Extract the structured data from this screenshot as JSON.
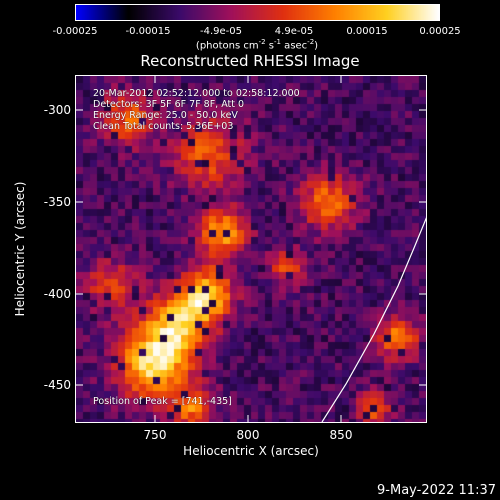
{
  "colorbar": {
    "tick_labels": [
      "-0.00025",
      "-0.00015",
      "-4.9e-05",
      "4.9e-05",
      "0.00015",
      "0.00025"
    ],
    "unit_text": "(photons cm",
    "unit_exp1": "-2",
    "unit_mid": " s",
    "unit_exp2": "-1",
    "unit_tail": " asec",
    "unit_exp3": "-2",
    "unit_close": ")",
    "colors": [
      "#0000ff",
      "#000000",
      "#3b0a6a",
      "#a0105a",
      "#e03010",
      "#ff8000",
      "#ffd020",
      "#ffffff"
    ]
  },
  "title": "Reconstructed RHESSI Image",
  "overlay": {
    "time_range": "20-Mar-2012 02:52:12.000 to 02:58:12.000",
    "detectors": "Detectors: 3F 5F 6F 7F 8F, Att 0",
    "energy": "Energy Range: 25.0 - 50.0 keV",
    "clean": "Clean     Total counts: 5.36E+03",
    "peak": "Position of Peak = [741,-435]"
  },
  "axes": {
    "xlabel": "Heliocentric X (arcsec)",
    "ylabel": "Heliocentric Y (arcsec)",
    "xticks": [
      "750",
      "800",
      "850"
    ],
    "yticks": [
      "-300",
      "-350",
      "-400",
      "-450"
    ],
    "xlim": [
      705,
      893
    ],
    "ylim": [
      -473,
      -282
    ]
  },
  "footer": {
    "timestamp": "9-May-2022 11:37"
  }
}
